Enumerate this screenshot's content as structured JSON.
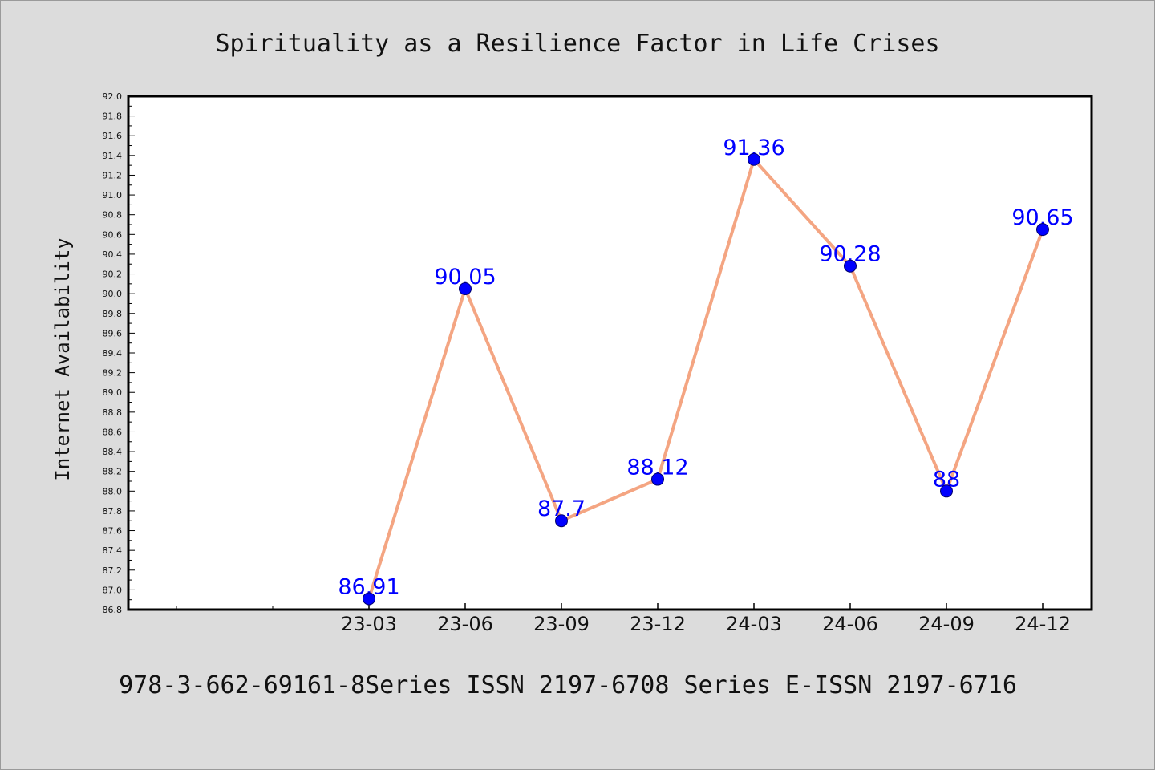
{
  "chart_data": {
    "type": "line",
    "title": "Spirituality as a Resilience Factor in Life Crises",
    "ylabel": "Internet Availability",
    "xlabel": "",
    "categories": [
      "23-03",
      "23-06",
      "23-09",
      "23-12",
      "24-03",
      "24-06",
      "24-09",
      "24-12"
    ],
    "series": [
      {
        "values": [
          86.91,
          90.05,
          87.7,
          88.12,
          91.36,
          90.28,
          88,
          90.65
        ],
        "labels": [
          "86.91",
          "90.05",
          "87.7",
          "88.12",
          "91.36",
          "90.28",
          "88",
          "90.65"
        ],
        "line_color": "#f4a582",
        "marker_color": "#0000ff"
      }
    ],
    "ylim": [
      86.8,
      92.0
    ],
    "ytick_step": 0.2,
    "grid": false,
    "legend": "none",
    "label_color": "#0000ff"
  },
  "footer": "978-3-662-69161-8Series ISSN 2197-6708 Series E-ISSN 2197-6716"
}
